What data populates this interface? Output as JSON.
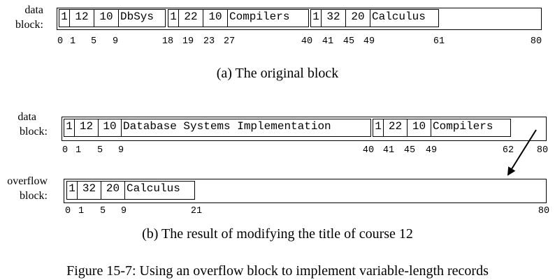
{
  "diagram_a": {
    "label_line1": "data",
    "label_line2": "block:",
    "records": [
      {
        "fields": [
          "1",
          "12",
          "10",
          "DbSys"
        ]
      },
      {
        "fields": [
          "1",
          "22",
          "10",
          "Compilers"
        ]
      },
      {
        "fields": [
          "1",
          "32",
          "20",
          "Calculus"
        ]
      }
    ],
    "ticks": [
      "0",
      "1",
      "5",
      "9",
      "18",
      "19",
      "23",
      "27",
      "40",
      "41",
      "45",
      "49",
      "61",
      "80"
    ],
    "caption": "(a)  The original block"
  },
  "diagram_b": {
    "data_label_line1": "data",
    "data_label_line2": "block:",
    "data_records": [
      {
        "fields": [
          "1",
          "12",
          "10",
          "Database Systems Implementation"
        ]
      },
      {
        "fields": [
          "1",
          "22",
          "10",
          "Compilers"
        ]
      }
    ],
    "data_ticks": [
      "0",
      "1",
      "5",
      "9",
      "40",
      "41",
      "45",
      "49",
      "62",
      "80"
    ],
    "overflow_label_line1": "overflow",
    "overflow_label_line2": "block:",
    "overflow_records": [
      {
        "fields": [
          "1",
          "32",
          "20",
          "Calculus"
        ]
      }
    ],
    "overflow_ticks": [
      "0",
      "1",
      "5",
      "9",
      "21",
      "80"
    ],
    "caption": "(b)  The result of modifying the title of course 12"
  },
  "figure_caption": "Figure 15-7:   Using an overflow block to implement variable-length records"
}
